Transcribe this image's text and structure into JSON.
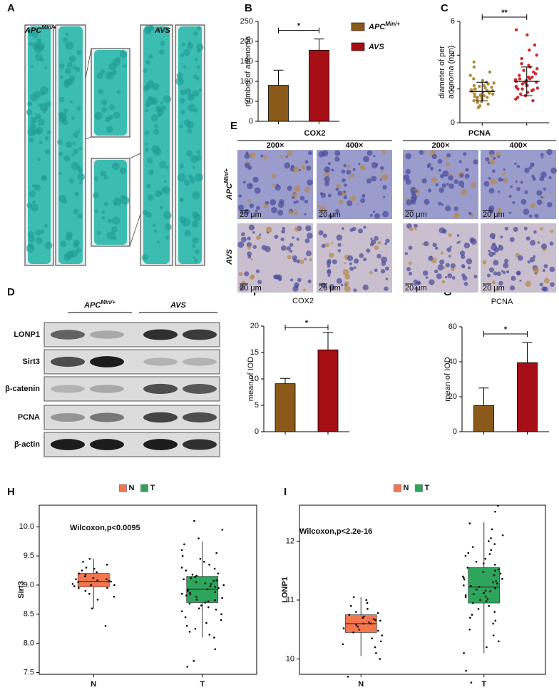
{
  "figure": {
    "panel_labels": [
      "A",
      "B",
      "C",
      "D",
      "E",
      "F",
      "G",
      "H",
      "I"
    ],
    "group_a": {
      "base": "APC",
      "sup": "Min/+"
    },
    "group_b": "AVS",
    "blot_rows": [
      "LONP1",
      "Sirt3",
      "β-catenin",
      "PCNA",
      "β-actin"
    ],
    "ihc": {
      "stains": [
        "COX2",
        "PCNA"
      ],
      "magnifications": [
        "200×",
        "400×"
      ],
      "scale_bar": "20 μm"
    }
  },
  "chart_data": [
    {
      "type": "bar",
      "ylabel": "number of adenoma",
      "categories": [
        null,
        null
      ],
      "values": [
        90,
        178
      ],
      "errors": [
        38,
        28
      ],
      "colors": [
        "#8b5a1b",
        "#a50f15"
      ],
      "ylim": [
        0,
        250
      ],
      "yticks": [
        0,
        50,
        100,
        150,
        200,
        250
      ],
      "significance": "*",
      "legend": true
    },
    {
      "type": "strip",
      "ylabel": [
        "diameter of per",
        "adenoma (mm)"
      ],
      "categories": [
        null,
        null
      ],
      "colors": [
        "#b08a3a",
        "#d0282c"
      ],
      "series": [
        [
          1.2,
          1.5,
          1.8,
          2.0,
          1.6,
          2.3,
          1.9,
          1.4,
          2.6,
          1.7,
          2.1,
          1.3,
          1.85,
          2.2,
          1.55,
          3.0,
          1.1,
          2.4,
          1.75,
          1.95,
          2.8,
          1.65,
          1.45,
          2.05,
          3.6,
          1.25,
          1.9,
          2.15,
          1.6,
          0.9,
          2.5,
          1.8,
          1.35,
          2.35,
          1.7,
          3.3,
          2.0,
          1.5,
          1.0,
          2.2
        ],
        [
          2.0,
          2.4,
          1.8,
          3.1,
          2.6,
          2.2,
          4.0,
          1.6,
          2.9,
          2.3,
          3.5,
          2.1,
          1.4,
          2.7,
          5.2,
          2.5,
          1.9,
          3.3,
          2.45,
          2.0,
          4.6,
          2.8,
          1.7,
          2.2,
          3.8,
          2.35,
          1.5,
          3.0,
          2.6,
          5.5,
          2.15,
          2.4,
          1.3,
          3.4,
          2.05,
          4.3,
          2.7,
          1.95,
          2.55,
          3.2
        ]
      ],
      "means": [
        1.85,
        2.45
      ],
      "sd": [
        0.55,
        0.85
      ],
      "ylim": [
        0,
        6
      ],
      "yticks": [
        0,
        2,
        4,
        6
      ],
      "significance": "**"
    },
    {
      "type": "bar",
      "title": "COX2",
      "ylabel": "mean of IOD",
      "categories": [
        null,
        null
      ],
      "values": [
        9.1,
        15.5
      ],
      "errors": [
        1.0,
        3.3
      ],
      "colors": [
        "#8b5a1b",
        "#a50f15"
      ],
      "ylim": [
        0,
        20
      ],
      "yticks": [
        0,
        5,
        10,
        15,
        20
      ],
      "significance": "*"
    },
    {
      "type": "bar",
      "title": "PCNA",
      "ylabel": "mean of IOD",
      "categories": [
        null,
        null
      ],
      "values": [
        15,
        39.5
      ],
      "errors": [
        10,
        11.5
      ],
      "colors": [
        "#8b5a1b",
        "#a50f15"
      ],
      "ylim": [
        0,
        60
      ],
      "yticks": [
        0,
        20,
        40,
        60
      ],
      "significance": "*"
    },
    {
      "type": "box",
      "ylabel": "Sirt3",
      "annotation": "Wilcoxon,p<0.0095",
      "categories": [
        "N",
        "T"
      ],
      "ylim": [
        7.47,
        10.37
      ],
      "yticks": [
        7.5,
        {
          "value": 8,
          "label": "8.0"
        },
        8.5,
        {
          "value": 9,
          "label": "9.0"
        },
        9.5,
        {
          "value": 10,
          "label": "10.0"
        }
      ],
      "series": [
        {
          "name": "N",
          "color": "#f4764e",
          "stats": {
            "low": 8.6,
            "q1": 8.97,
            "median": 9.06,
            "q3": 9.2,
            "high": 9.45
          },
          "points": [
            8.3,
            8.6,
            8.75,
            8.85,
            8.9,
            8.95,
            8.98,
            9.0,
            9.02,
            9.05,
            9.06,
            9.08,
            9.1,
            9.12,
            9.15,
            9.18,
            9.2,
            9.22,
            9.25,
            9.3,
            9.35,
            9.4,
            9.45,
            9.0,
            9.1,
            8.95,
            9.07,
            9.15,
            8.8,
            9.28
          ]
        },
        {
          "name": "T",
          "color": "#2da55c",
          "stats": {
            "low": 8.1,
            "q1": 8.7,
            "median": 8.93,
            "q3": 9.15,
            "high": 9.75
          },
          "points": [
            7.6,
            7.7,
            7.9,
            8.1,
            8.2,
            8.3,
            8.35,
            8.45,
            8.5,
            8.55,
            8.6,
            8.62,
            8.65,
            8.7,
            8.72,
            8.75,
            8.78,
            8.8,
            8.82,
            8.85,
            8.87,
            8.9,
            8.92,
            8.93,
            8.95,
            8.97,
            9.0,
            9.02,
            9.05,
            9.07,
            9.1,
            9.12,
            9.14,
            9.16,
            9.2,
            9.25,
            9.3,
            9.35,
            9.4,
            9.45,
            9.5,
            9.6,
            9.7,
            9.8,
            9.95,
            10.1,
            8.68,
            8.88,
            9.03,
            8.58,
            8.4,
            9.18,
            8.98,
            8.74,
            9.08,
            8.84,
            9.28,
            8.15,
            9.55,
            8.25
          ]
        }
      ]
    },
    {
      "type": "box",
      "ylabel": "LONP1",
      "annotation": "Wilcoxon,p<2.2e-16",
      "categories": [
        "N",
        "T"
      ],
      "ylim": [
        9.74,
        12.61
      ],
      "yticks": [
        10,
        11,
        12
      ],
      "series": [
        {
          "name": "N",
          "color": "#f4764e",
          "stats": {
            "low": 10.05,
            "q1": 10.45,
            "median": 10.6,
            "q3": 10.75,
            "high": 11.05
          },
          "points": [
            9.7,
            10.0,
            10.1,
            10.2,
            10.3,
            10.35,
            10.4,
            10.45,
            10.5,
            10.52,
            10.55,
            10.58,
            10.6,
            10.62,
            10.65,
            10.68,
            10.7,
            10.72,
            10.75,
            10.8,
            10.85,
            10.9,
            10.95,
            11.0,
            11.05,
            10.6,
            10.48,
            10.66,
            10.25,
            10.78
          ]
        },
        {
          "name": "T",
          "color": "#2da55c",
          "stats": {
            "low": 10.1,
            "q1": 10.95,
            "median": 11.22,
            "q3": 11.55,
            "high": 12.32
          },
          "points": [
            9.6,
            9.8,
            10.1,
            10.3,
            10.5,
            10.6,
            10.7,
            10.8,
            10.85,
            10.9,
            10.95,
            11.0,
            11.02,
            11.05,
            11.1,
            11.12,
            11.15,
            11.18,
            11.2,
            11.22,
            11.25,
            11.28,
            11.3,
            11.32,
            11.35,
            11.38,
            11.4,
            11.45,
            11.5,
            11.55,
            11.6,
            11.65,
            11.7,
            11.75,
            11.8,
            11.85,
            11.9,
            12.0,
            12.1,
            12.2,
            12.3,
            12.5,
            12.6,
            10.75,
            10.98,
            11.08,
            11.24,
            11.42,
            11.52,
            11.62,
            10.4,
            10.2,
            11.16,
            11.36,
            11.78,
            11.95,
            10.65,
            11.48,
            11.06,
            12.05
          ]
        }
      ]
    }
  ]
}
